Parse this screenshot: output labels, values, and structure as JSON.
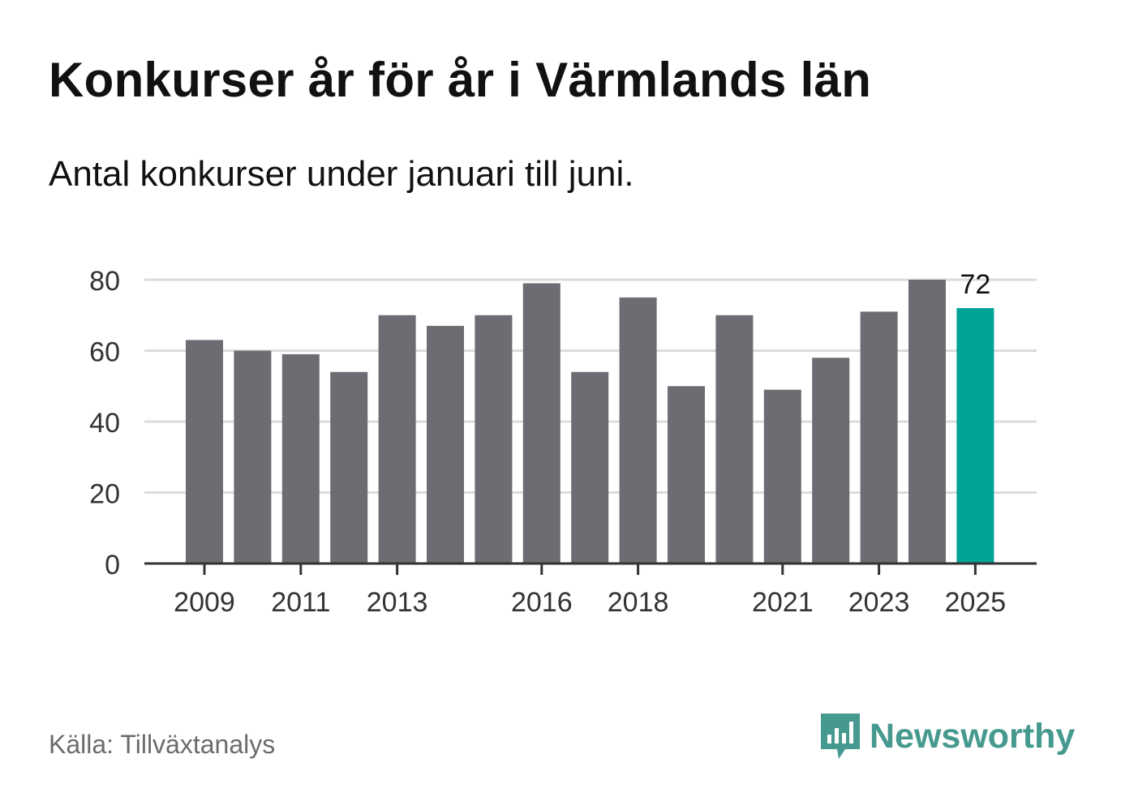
{
  "title": "Konkurser år för år i Värmlands län",
  "subtitle": "Antal konkurser under januari till juni.",
  "source": "Källa: Tillväxtanalys",
  "brand": {
    "name": "Newsworthy",
    "icon": "newsworthy-logo-icon",
    "color": "#45998f"
  },
  "colors": {
    "bar": "#6d6c72",
    "highlight": "#00a398",
    "grid": "#dcdcdc",
    "axis": "#333333"
  },
  "chart_data": {
    "type": "bar",
    "categories": [
      "2009",
      "2010",
      "2011",
      "2012",
      "2013",
      "2014",
      "2015",
      "2016",
      "2017",
      "2018",
      "2019",
      "2020",
      "2021",
      "2022",
      "2023",
      "2024",
      "2025"
    ],
    "values": [
      63,
      60,
      59,
      54,
      70,
      67,
      70,
      79,
      54,
      75,
      50,
      70,
      49,
      58,
      71,
      80,
      72
    ],
    "x_tick_labels": [
      "2009",
      "2011",
      "2013",
      "2016",
      "2018",
      "2021",
      "2023",
      "2025"
    ],
    "y_ticks": [
      0,
      20,
      40,
      60,
      80
    ],
    "ylim": [
      0,
      80
    ],
    "highlight": {
      "category": "2025",
      "label": "72"
    },
    "grid": true,
    "xlabel": "",
    "ylabel": ""
  }
}
